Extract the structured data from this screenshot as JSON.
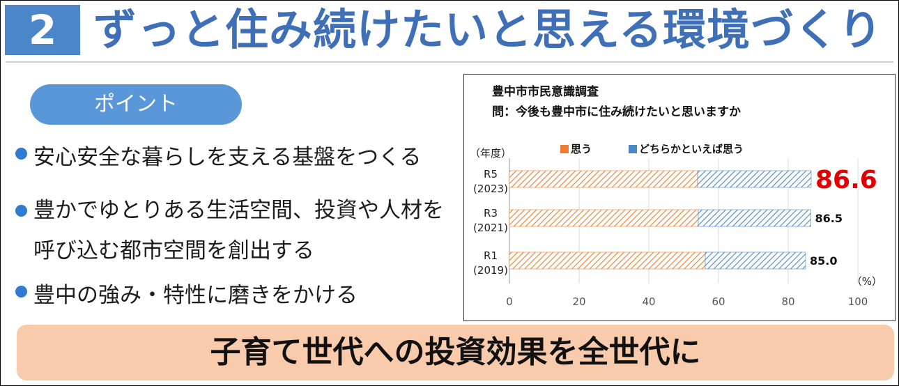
{
  "header": {
    "number": "2",
    "title": "ずっと住み続けたいと思える環境づくり"
  },
  "point_label": "ポイント",
  "bullets": [
    "安心安全な暮らしを支える基盤をつくる",
    "豊かでゆとりある生活空間、投資や人材を呼び込む都市空間を創出する",
    "豊中の強み・特性に磨きをかける"
  ],
  "banner": "子育て世代への投資効果を全世代に",
  "colors": {
    "header_box": "#4a86c8",
    "title": "#3f6fb7",
    "pill": "#5a97d8",
    "bullet_dot": "#2f7bd1",
    "banner": "#f8cbad",
    "series_omou": "#ed7d31",
    "series_dochiraka": "#4a86c8",
    "highlight_value": "#e00000"
  },
  "chart_data": {
    "type": "bar",
    "orientation": "horizontal",
    "stacked": true,
    "title": "豊中市市民意識調査",
    "subtitle": "問：今後も豊中市に住み続けたいと思いますか",
    "year_axis_label": "（年度）",
    "unit_label": "（%）",
    "categories": [
      {
        "code": "R5",
        "year": "(2023)"
      },
      {
        "code": "R3",
        "year": "(2021)"
      },
      {
        "code": "R1",
        "year": "(2019)"
      }
    ],
    "series": [
      {
        "name": "思う",
        "values": [
          54.0,
          54.2,
          56.2
        ]
      },
      {
        "name": "どちらかといえば思う",
        "values": [
          32.6,
          32.3,
          28.8
        ]
      }
    ],
    "totals": [
      "86.6",
      "86.5",
      "85.0"
    ],
    "xlim": [
      0,
      100
    ],
    "xticks": [
      0,
      20,
      40,
      60,
      80,
      100
    ],
    "grid": true,
    "legend_position": "top"
  }
}
